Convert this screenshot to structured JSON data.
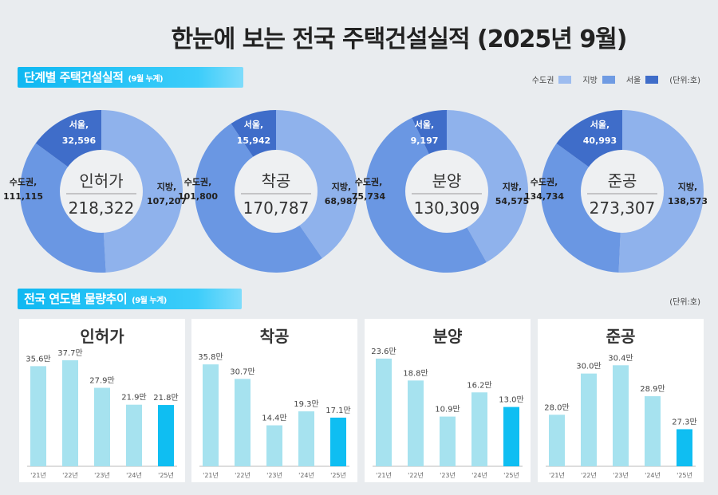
{
  "title": "한눈에 보는 전국 주택건설실적 (2025년 9월)",
  "section1": {
    "label": "단계별 주택건설실적",
    "sub": "(9월 누계)"
  },
  "legend": {
    "items": [
      {
        "label": "수도권",
        "color": "#9dbcef"
      },
      {
        "label": "지방",
        "color": "#6f9be3"
      },
      {
        "label": "서울",
        "color": "#3f6dc9"
      }
    ],
    "unit": "(단위:호)"
  },
  "section2": {
    "label": "전국 연도별 물량추이",
    "sub": "(9월 누계)",
    "unit": "(단위:호)"
  },
  "chart_data": [
    {
      "type": "pie",
      "title": "인허가",
      "total": "218,322",
      "slices": [
        {
          "name": "지방,",
          "label": "107,207",
          "value": 107207
        },
        {
          "name": "수도권,",
          "label": "111,115",
          "value": 111115
        },
        {
          "name": "서울,",
          "label": "32,596",
          "value": 32596
        }
      ]
    },
    {
      "type": "pie",
      "title": "착공",
      "total": "170,787",
      "slices": [
        {
          "name": "지방,",
          "label": "68,987",
          "value": 68987
        },
        {
          "name": "수도권,",
          "label": "101,800",
          "value": 101800
        },
        {
          "name": "서울,",
          "label": "15,942",
          "value": 15942
        }
      ]
    },
    {
      "type": "pie",
      "title": "분양",
      "total": "130,309",
      "slices": [
        {
          "name": "지방,",
          "label": "54,575",
          "value": 54575
        },
        {
          "name": "수도권,",
          "label": "75,734",
          "value": 75734
        },
        {
          "name": "서울,",
          "label": "9,197",
          "value": 9197
        }
      ]
    },
    {
      "type": "pie",
      "title": "준공",
      "total": "273,307",
      "slices": [
        {
          "name": "지방,",
          "label": "138,573",
          "value": 138573
        },
        {
          "name": "수도권,",
          "label": "134,734",
          "value": 134734
        },
        {
          "name": "서울,",
          "label": "40,993",
          "value": 40993
        }
      ]
    },
    {
      "type": "bar",
      "title": "인허가",
      "categories": [
        "'21년",
        "'22년",
        "'23년",
        "'24년",
        "'25년"
      ],
      "values": [
        35.6,
        37.7,
        27.9,
        21.9,
        21.8
      ],
      "labels": [
        "35.6만",
        "37.7만",
        "27.9만",
        "21.9만",
        "21.8만"
      ],
      "ylim": [
        0,
        42.5
      ]
    },
    {
      "type": "bar",
      "title": "착공",
      "categories": [
        "'21년",
        "'22년",
        "'23년",
        "'24년",
        "'25년"
      ],
      "values": [
        35.8,
        30.7,
        14.4,
        19.3,
        17.1
      ],
      "labels": [
        "35.8만",
        "30.7만",
        "14.4만",
        "19.3만",
        "17.1만"
      ],
      "ylim": [
        0,
        42
      ]
    },
    {
      "type": "bar",
      "title": "분양",
      "categories": [
        "'21년",
        "'22년",
        "'23년",
        "'24년",
        "'25년"
      ],
      "values": [
        23.6,
        18.8,
        10.9,
        16.2,
        13.0
      ],
      "labels": [
        "23.6만",
        "18.8만",
        "10.9만",
        "16.2만",
        "13.0만"
      ],
      "ylim": [
        0,
        26.2
      ]
    },
    {
      "type": "bar",
      "title": "준공",
      "categories": [
        "'21년",
        "'22년",
        "'23년",
        "'24년",
        "'25년"
      ],
      "values": [
        28.0,
        30.0,
        30.4,
        28.9,
        27.3
      ],
      "labels": [
        "28.0만",
        "30.0만",
        "30.4만",
        "28.9만",
        "27.3만"
      ],
      "ylim": [
        25.5,
        31.3
      ]
    }
  ],
  "colors": {
    "bar": "#a6e2ef",
    "bar_current": "#0fbef2",
    "ring_local": "#8fb2ec",
    "ring_metro": "#6a97e3",
    "ring_seoul": "#3f6dc9"
  }
}
